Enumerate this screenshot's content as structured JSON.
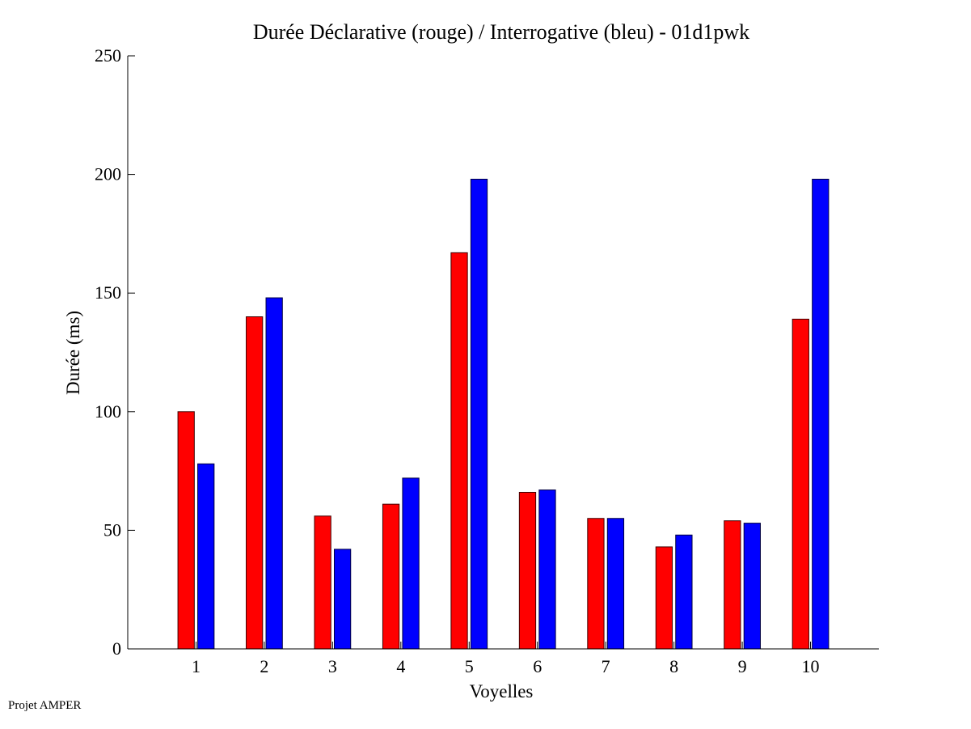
{
  "chart_data": {
    "type": "bar",
    "title": "Durée Déclarative (rouge) / Interrogative (bleu) - 01d1pwk",
    "xlabel": "Voyelles",
    "ylabel": "Durée (ms)",
    "categories": [
      "1",
      "2",
      "3",
      "4",
      "5",
      "6",
      "7",
      "8",
      "9",
      "10"
    ],
    "series": [
      {
        "name": "Déclarative",
        "color": "#ff0000",
        "values": [
          100,
          140,
          56,
          61,
          167,
          66,
          55,
          43,
          54,
          139
        ]
      },
      {
        "name": "Interrogative",
        "color": "#0000ff",
        "values": [
          78,
          148,
          42,
          72,
          198,
          67,
          55,
          48,
          53,
          198
        ]
      }
    ],
    "ylim": [
      0,
      250
    ],
    "yticks": [
      0,
      50,
      100,
      150,
      200,
      250
    ],
    "xlim": [
      0,
      11
    ],
    "grid": false,
    "legend": "none"
  },
  "footer": "Projet AMPER"
}
